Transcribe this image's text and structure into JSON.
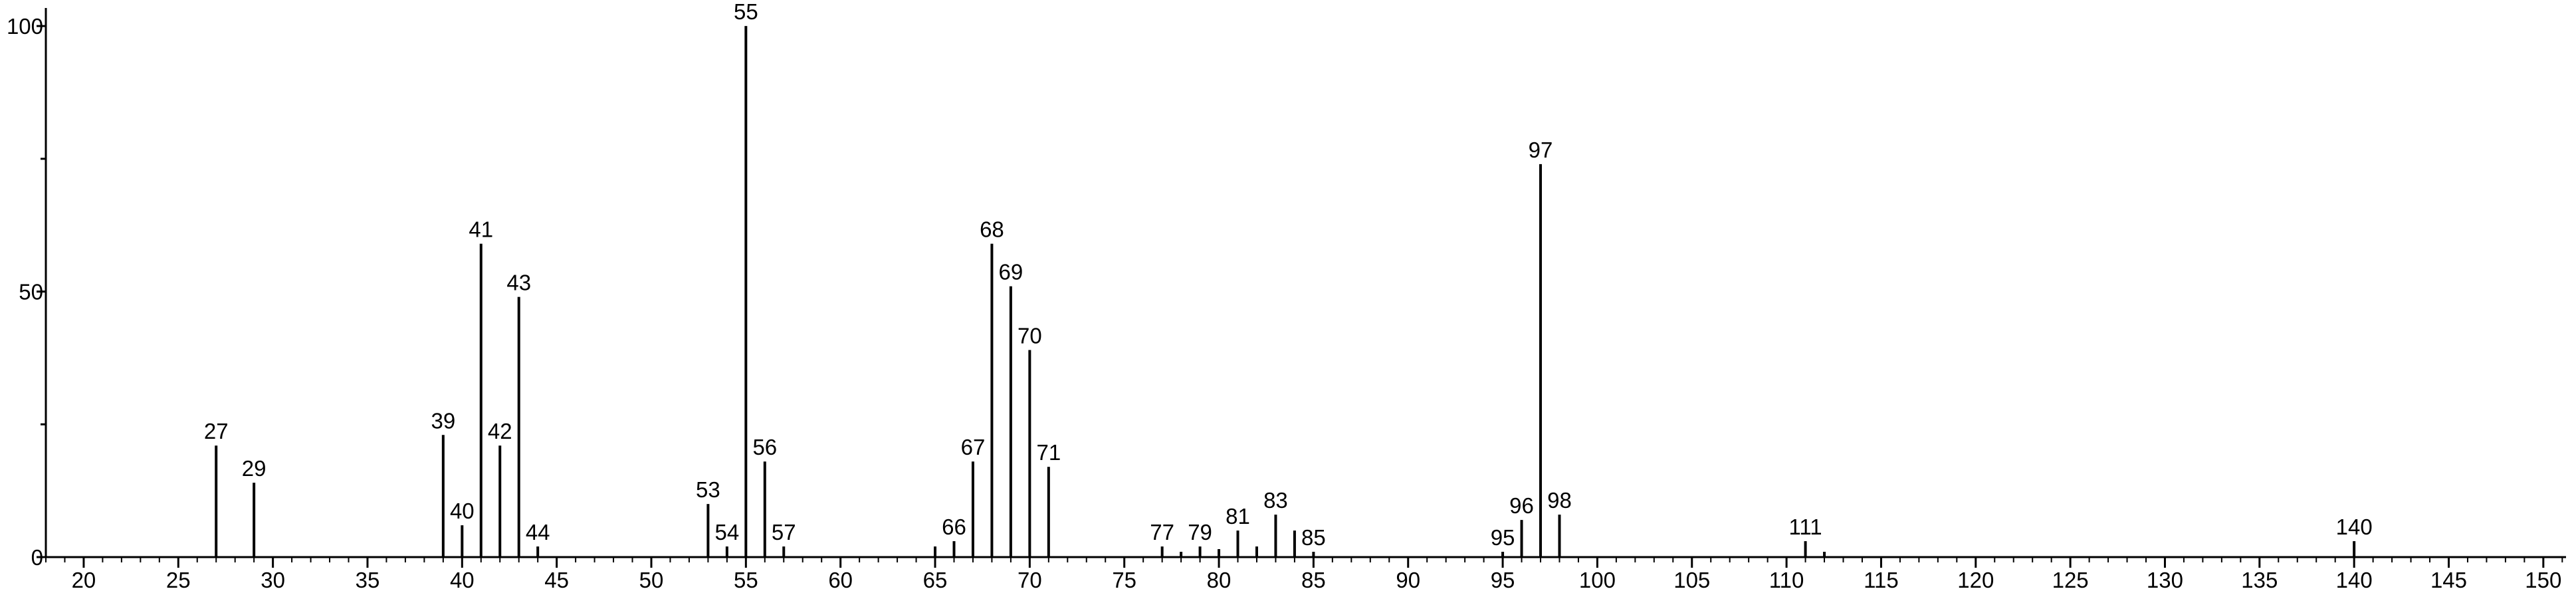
{
  "chart_data": {
    "type": "stick",
    "x": [
      27,
      29,
      39,
      40,
      41,
      42,
      43,
      44,
      53,
      54,
      55,
      56,
      57,
      65,
      66,
      67,
      68,
      69,
      70,
      71,
      77,
      78,
      79,
      80,
      81,
      82,
      83,
      84,
      85,
      95,
      96,
      97,
      98,
      111,
      112,
      140
    ],
    "values": [
      21,
      14,
      23,
      6,
      59,
      21,
      49,
      2,
      10,
      2,
      100,
      18,
      2,
      2,
      3,
      18,
      59,
      51,
      39,
      17,
      2,
      1,
      2,
      1.5,
      5,
      2,
      8,
      5,
      1,
      1,
      7,
      74,
      8,
      3,
      1,
      3
    ],
    "peak_labels": [
      27,
      29,
      39,
      40,
      41,
      42,
      43,
      44,
      53,
      54,
      55,
      56,
      57,
      null,
      66,
      67,
      68,
      69,
      70,
      71,
      77,
      null,
      79,
      null,
      81,
      null,
      83,
      null,
      85,
      95,
      96,
      97,
      98,
      111,
      null,
      140
    ],
    "color": "#000000",
    "xlim": [
      18,
      151.2
    ],
    "xticks": [
      20,
      25,
      30,
      35,
      40,
      45,
      50,
      55,
      60,
      65,
      70,
      75,
      80,
      85,
      90,
      95,
      100,
      105,
      110,
      115,
      120,
      125,
      130,
      135,
      140,
      145,
      150
    ],
    "ylim": [
      0,
      103.4
    ],
    "yticks": [
      0,
      50,
      100
    ]
  }
}
